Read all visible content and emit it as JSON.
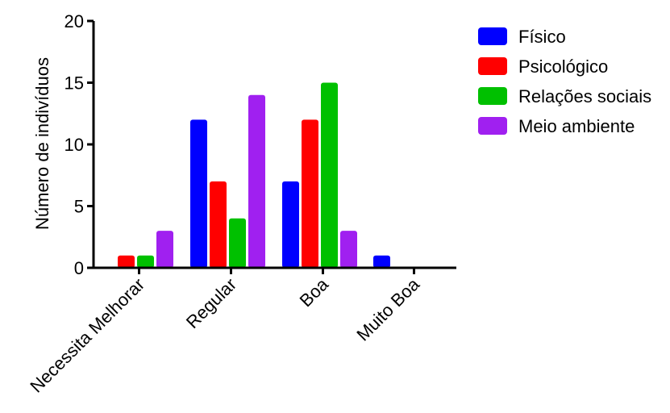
{
  "chart_data": {
    "type": "bar",
    "title": "",
    "xlabel": "",
    "ylabel": "Número de indivíduos",
    "ylim": [
      0,
      20
    ],
    "yticks": [
      "0",
      "5",
      "10",
      "15",
      "20"
    ],
    "grid": false,
    "legend_position": "right",
    "categories": [
      "Necessita Melhorar",
      "Regular",
      "Boa",
      "Muito Boa"
    ],
    "series": [
      {
        "name": "Físico",
        "color": "#0000ff",
        "values": [
          0,
          12,
          7,
          1
        ]
      },
      {
        "name": "Psicológico",
        "color": "#ff0000",
        "values": [
          1,
          7,
          12,
          0
        ]
      },
      {
        "name": "Relações sociais",
        "color": "#00c000",
        "values": [
          1,
          4,
          15,
          0
        ]
      },
      {
        "name": "Meio ambiente",
        "color": "#a020f0",
        "values": [
          3,
          14,
          3,
          0
        ]
      }
    ]
  }
}
